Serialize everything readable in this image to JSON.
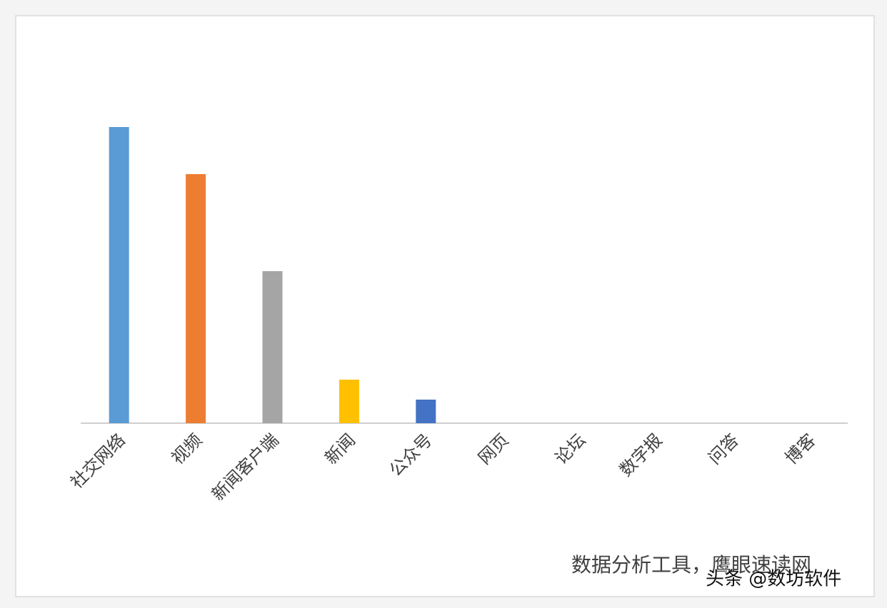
{
  "chart_data": {
    "type": "bar",
    "categories": [
      "社交网络",
      "视频",
      "新闻客户端",
      "新闻",
      "公众号",
      "网页",
      "论坛",
      "数字报",
      "问答",
      "博客"
    ],
    "values": [
      415,
      349,
      213,
      61,
      33,
      0,
      0,
      0,
      0,
      0
    ],
    "colors": [
      "#5b9bd5",
      "#ed7d31",
      "#a5a5a5",
      "#ffc000",
      "#4472c4",
      "#70ad47",
      "#255e91",
      "#9e480e",
      "#636363",
      "#997300"
    ],
    "ylim": [
      0,
      450
    ],
    "annotations": [
      "数据分析工具，鹰眼速读网",
      "头条 @数坊软件"
    ]
  }
}
